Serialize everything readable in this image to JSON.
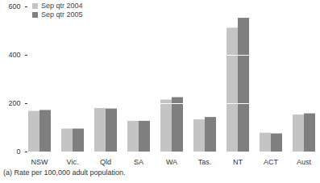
{
  "chart_data": {
    "type": "bar",
    "categories": [
      "NSW",
      "Vic.",
      "Qld",
      "SA",
      "WA",
      "Tas.",
      "NT",
      "ACT",
      "Aust"
    ],
    "series": [
      {
        "name": "Sep qtr 2004",
        "color": "#c4c4c4",
        "values": [
          168,
          95,
          180,
          127,
          215,
          133,
          512,
          78,
          153
        ]
      },
      {
        "name": "Sep qtr 2005",
        "color": "#7f7f7f",
        "values": [
          172,
          95,
          178,
          127,
          225,
          143,
          553,
          75,
          158
        ]
      }
    ],
    "ylim": [
      0,
      600
    ],
    "yticks": [
      0,
      200,
      400,
      600
    ],
    "grid": true,
    "legend": "upper left",
    "annotations": [
      "(a) Rate per 100,000 adult population."
    ]
  }
}
